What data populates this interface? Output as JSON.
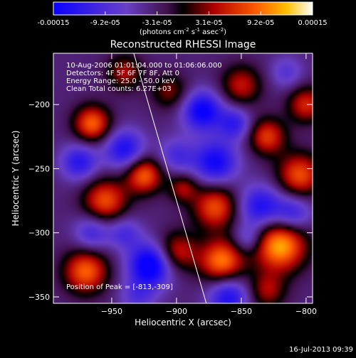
{
  "chart_data": {
    "type": "heatmap",
    "title": "Reconstructed RHESSI Image",
    "xlabel": "Heliocentric X (arcsec)",
    "ylabel": "Heliocentric Y (arcsec)",
    "xlim": [
      -995,
      -795
    ],
    "ylim": [
      -355,
      -160
    ],
    "x_ticks": [
      -950,
      -900,
      -850,
      -800
    ],
    "y_ticks": [
      -200,
      -250,
      -300,
      -350
    ],
    "colorbar": {
      "range": [
        -0.00015,
        0.00015
      ],
      "tick_labels": [
        "-0.00015",
        "-9.2e-05",
        "-3.1e-05",
        "3.1e-05",
        "9.2e-05",
        "0.00015"
      ],
      "units_line": "(photons cm",
      "units_sup1": "-2",
      "units_mid1": " s",
      "units_sup2": "-1",
      "units_mid2": " asec",
      "units_sup3": "-2",
      "units_end": ")"
    },
    "annotations": {
      "time_range": "10-Aug-2006 01:01:04.000 to 01:06:06.000",
      "detectors": "Detectors: 4F 5F 6F 7F 8F, Att 0",
      "energy": "Energy Range: 25.0 - 50.0 keV",
      "clean": "Clean    Total counts: 6.27E+03",
      "peak": "Position of Peak = [-813,-309]"
    },
    "limb_line": {
      "x": [
        -933,
        -877
      ],
      "y": [
        -160,
        -355
      ]
    },
    "blobs": [
      {
        "x": -820,
        "y": -310,
        "v": 0.00015,
        "s": 14
      },
      {
        "x": -805,
        "y": -255,
        "v": 0.00011,
        "s": 12
      },
      {
        "x": -830,
        "y": -225,
        "v": 0.0001,
        "s": 10
      },
      {
        "x": -870,
        "y": -280,
        "v": 0.00011,
        "s": 12
      },
      {
        "x": -865,
        "y": -322,
        "v": 0.00013,
        "s": 12
      },
      {
        "x": -850,
        "y": -185,
        "v": 8e-05,
        "s": 11
      },
      {
        "x": -900,
        "y": -315,
        "v": 9e-05,
        "s": 11
      },
      {
        "x": -925,
        "y": -255,
        "v": 0.00012,
        "s": 10
      },
      {
        "x": -965,
        "y": -215,
        "v": 0.00012,
        "s": 10
      },
      {
        "x": -955,
        "y": -275,
        "v": 0.00011,
        "s": 12
      },
      {
        "x": -970,
        "y": -330,
        "v": 0.00012,
        "s": 12
      },
      {
        "x": -940,
        "y": -175,
        "v": 7e-05,
        "s": 10
      },
      {
        "x": -905,
        "y": -190,
        "v": 6e-05,
        "s": 10
      },
      {
        "x": -895,
        "y": -265,
        "v": 7e-05,
        "s": 8
      },
      {
        "x": -830,
        "y": -345,
        "v": 7e-05,
        "s": 10
      },
      {
        "x": -800,
        "y": -200,
        "v": 9e-05,
        "s": 10
      },
      {
        "x": -900,
        "y": -240,
        "v": -6e-05,
        "s": 10
      },
      {
        "x": -940,
        "y": -235,
        "v": -0.0001,
        "s": 11
      },
      {
        "x": -920,
        "y": -325,
        "v": -0.00014,
        "s": 12
      },
      {
        "x": -870,
        "y": -245,
        "v": -0.00011,
        "s": 12
      },
      {
        "x": -835,
        "y": -280,
        "v": -0.0001,
        "s": 12
      },
      {
        "x": -810,
        "y": -285,
        "v": -8e-05,
        "s": 10
      },
      {
        "x": -880,
        "y": -205,
        "v": -0.00012,
        "s": 11
      },
      {
        "x": -855,
        "y": -215,
        "v": -8e-05,
        "s": 9
      },
      {
        "x": -975,
        "y": -245,
        "v": -9e-05,
        "s": 10
      },
      {
        "x": -965,
        "y": -300,
        "v": -7e-05,
        "s": 10
      },
      {
        "x": -860,
        "y": -350,
        "v": -0.0001,
        "s": 11
      },
      {
        "x": -940,
        "y": -300,
        "v": -6e-05,
        "s": 9
      },
      {
        "x": -845,
        "y": -305,
        "v": -6e-05,
        "s": 8
      },
      {
        "x": -815,
        "y": -175,
        "v": -5e-05,
        "s": 9
      },
      {
        "x": -930,
        "y": -350,
        "v": -5e-05,
        "s": 10
      }
    ]
  },
  "footer": {
    "timestamp": "16-Jul-2013 09:39"
  }
}
